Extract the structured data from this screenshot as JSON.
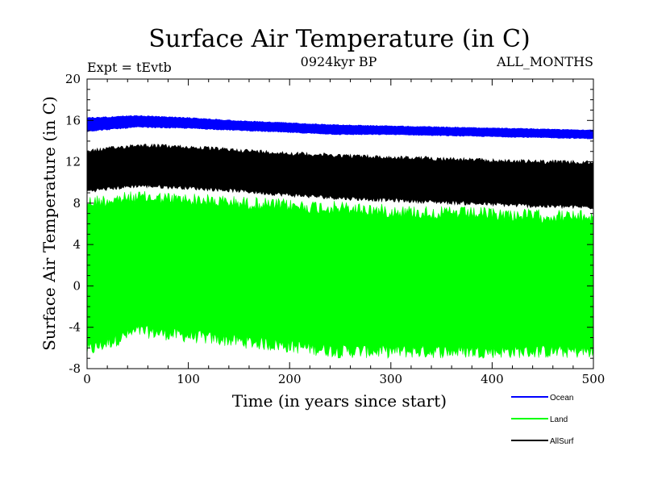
{
  "chart_data": {
    "type": "line",
    "title": "Surface Air Temperature (in C)",
    "subtitle_left": "Expt = tEvtb",
    "subtitle_center": "0924kyr BP",
    "subtitle_right": "ALL_MONTHS",
    "xlabel": "Time (in years since start)",
    "ylabel": "Surface Air Temperature (in C)",
    "xlim": [
      0,
      500
    ],
    "ylim": [
      -8,
      20
    ],
    "x_ticks": [
      "0",
      "100",
      "200",
      "300",
      "400",
      "500"
    ],
    "y_ticks": [
      "20",
      "16",
      "12",
      "8",
      "4",
      "0",
      "-4",
      "-8"
    ],
    "grid": false,
    "legend_position": "bottom-right",
    "series": [
      {
        "name": "Ocean",
        "color": "#0000ff",
        "x": [
          0,
          50,
          100,
          150,
          200,
          250,
          300,
          350,
          400,
          450,
          500
        ],
        "upper": [
          16.3,
          16.5,
          16.3,
          16.0,
          15.8,
          15.6,
          15.5,
          15.4,
          15.3,
          15.2,
          15.1
        ],
        "lower": [
          14.9,
          15.3,
          15.2,
          15.0,
          14.8,
          14.6,
          14.6,
          14.5,
          14.4,
          14.3,
          14.2
        ]
      },
      {
        "name": "Land",
        "color": "#00ff00",
        "x": [
          0,
          50,
          100,
          150,
          200,
          250,
          300,
          350,
          400,
          450,
          500
        ],
        "upper": [
          8.8,
          9.2,
          9.0,
          8.7,
          8.4,
          8.2,
          7.9,
          7.7,
          7.6,
          7.4,
          7.3
        ],
        "lower": [
          -7.0,
          -5.0,
          -5.5,
          -6.0,
          -6.5,
          -7.0,
          -7.0,
          -7.0,
          -7.0,
          -7.0,
          -7.0
        ]
      },
      {
        "name": "AllSurf",
        "color": "#000000",
        "x": [
          0,
          50,
          100,
          150,
          200,
          250,
          300,
          350,
          400,
          450,
          500
        ],
        "upper": [
          13.2,
          13.8,
          13.6,
          13.3,
          13.0,
          12.8,
          12.6,
          12.5,
          12.3,
          12.2,
          12.1
        ],
        "lower": [
          9.0,
          9.5,
          9.3,
          9.0,
          8.6,
          8.3,
          8.1,
          7.9,
          7.7,
          7.5,
          7.4
        ]
      }
    ]
  }
}
